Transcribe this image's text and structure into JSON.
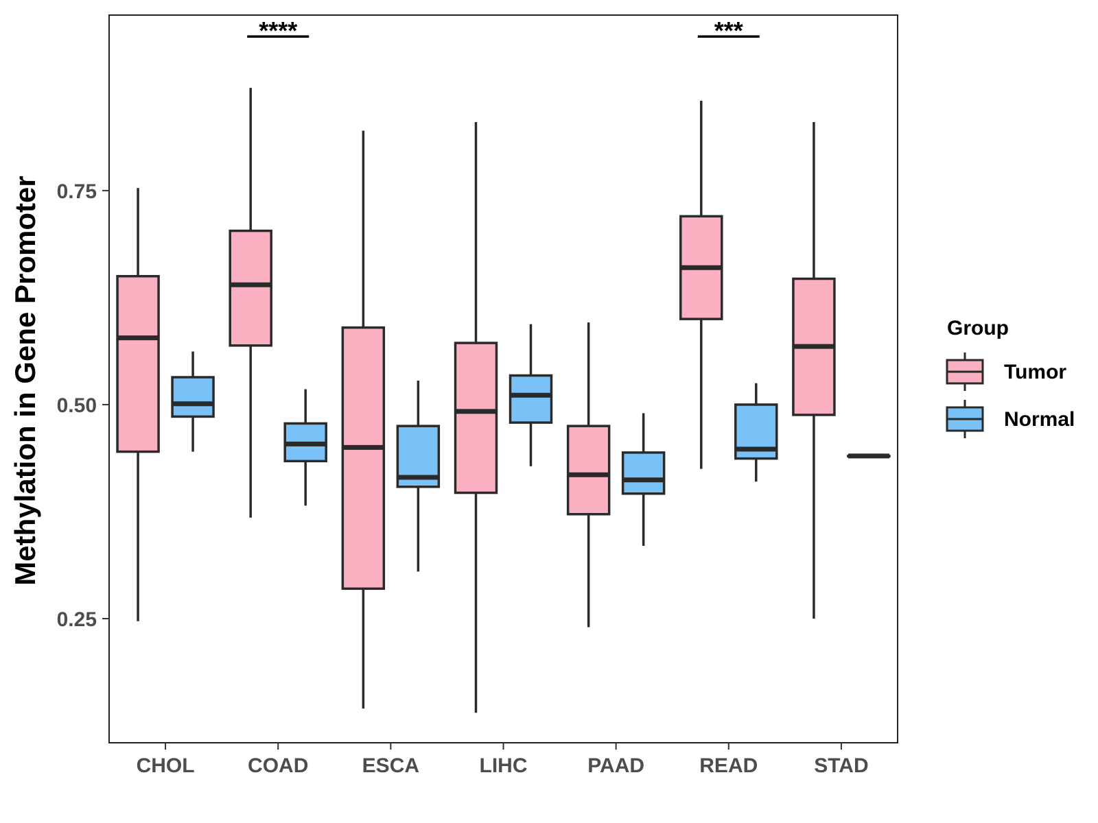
{
  "chart_data": {
    "type": "boxplot",
    "title": "",
    "xlabel": "",
    "ylabel": "Methylation in Gene Promoter",
    "ylim": [
      0.105,
      0.955
    ],
    "yticks": [
      0.25,
      0.5,
      0.75
    ],
    "ytick_labels": [
      "0.25",
      "0.50",
      "0.75"
    ],
    "categories": [
      "CHOL",
      "COAD",
      "ESCA",
      "LIHC",
      "PAAD",
      "READ",
      "STAD"
    ],
    "legend": {
      "title": "Group",
      "position": "right",
      "entries": [
        {
          "name": "Tumor",
          "color": "#FBB0C2"
        },
        {
          "name": "Normal",
          "color": "#7AC1F7"
        }
      ]
    },
    "series": [
      {
        "name": "Tumor",
        "color": "#FBB0C2",
        "boxes": [
          {
            "category": "CHOL",
            "min": 0.247,
            "q1": 0.445,
            "median": 0.578,
            "q3": 0.65,
            "max": 0.753
          },
          {
            "category": "COAD",
            "min": 0.368,
            "q1": 0.569,
            "median": 0.64,
            "q3": 0.703,
            "max": 0.87
          },
          {
            "category": "ESCA",
            "min": 0.145,
            "q1": 0.285,
            "median": 0.45,
            "q3": 0.59,
            "max": 0.82
          },
          {
            "category": "LIHC",
            "min": 0.14,
            "q1": 0.397,
            "median": 0.492,
            "q3": 0.572,
            "max": 0.83
          },
          {
            "category": "PAAD",
            "min": 0.24,
            "q1": 0.372,
            "median": 0.418,
            "q3": 0.475,
            "max": 0.596
          },
          {
            "category": "READ",
            "min": 0.425,
            "q1": 0.6,
            "median": 0.66,
            "q3": 0.72,
            "max": 0.855
          },
          {
            "category": "STAD",
            "min": 0.25,
            "q1": 0.488,
            "median": 0.568,
            "q3": 0.647,
            "max": 0.83
          }
        ]
      },
      {
        "name": "Normal",
        "color": "#7AC1F7",
        "boxes": [
          {
            "category": "CHOL",
            "min": 0.445,
            "q1": 0.486,
            "median": 0.501,
            "q3": 0.532,
            "max": 0.562
          },
          {
            "category": "COAD",
            "min": 0.382,
            "q1": 0.434,
            "median": 0.454,
            "q3": 0.478,
            "max": 0.518
          },
          {
            "category": "ESCA",
            "min": 0.305,
            "q1": 0.404,
            "median": 0.415,
            "q3": 0.475,
            "max": 0.528
          },
          {
            "category": "LIHC",
            "min": 0.428,
            "q1": 0.479,
            "median": 0.511,
            "q3": 0.534,
            "max": 0.594
          },
          {
            "category": "PAAD",
            "min": 0.335,
            "q1": 0.396,
            "median": 0.412,
            "q3": 0.444,
            "max": 0.49
          },
          {
            "category": "READ",
            "min": 0.41,
            "q1": 0.437,
            "median": 0.448,
            "q3": 0.5,
            "max": 0.525
          },
          {
            "category": "STAD",
            "min": 0.44,
            "q1": 0.44,
            "median": 0.44,
            "q3": 0.44,
            "max": 0.44
          }
        ]
      }
    ],
    "annotations": [
      {
        "category": "COAD",
        "label": "****",
        "y": 0.93
      },
      {
        "category": "READ",
        "label": "***",
        "y": 0.93
      }
    ]
  }
}
